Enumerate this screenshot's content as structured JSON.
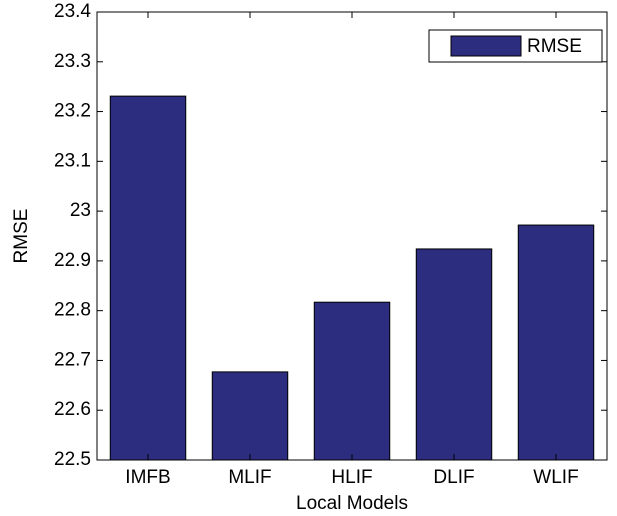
{
  "chart_data": {
    "type": "bar",
    "categories": [
      "IMFB",
      "MLIF",
      "HLIF",
      "DLIF",
      "WLIF"
    ],
    "series": [
      {
        "name": "RMSE",
        "color": "#2d2d80",
        "values": [
          23.231,
          22.677,
          22.817,
          22.924,
          22.972
        ]
      }
    ],
    "xlabel": "Local Models",
    "ylabel": "RMSE",
    "ylim": [
      22.5,
      23.4
    ],
    "yticks": [
      22.5,
      22.6,
      22.7,
      22.8,
      22.9,
      23,
      23.1,
      23.2,
      23.3,
      23.4
    ],
    "grid": false,
    "legend": "upper right"
  }
}
